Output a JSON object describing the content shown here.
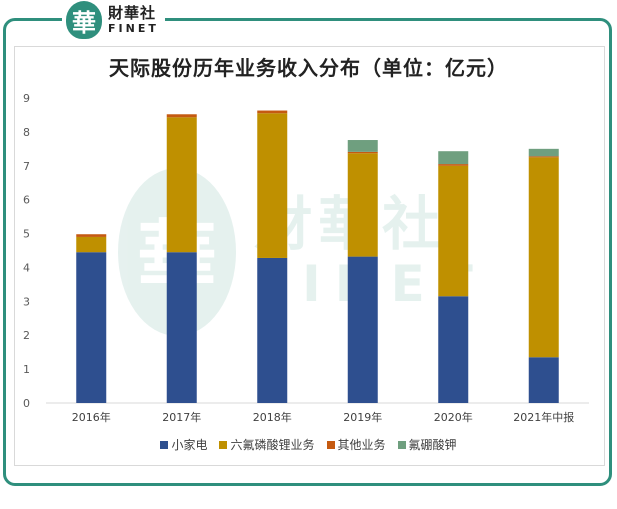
{
  "logo": {
    "mark": "華",
    "name_cn": "財華社",
    "name_en": "FINET"
  },
  "watermark": {
    "mark": "華",
    "name_cn": "財華社",
    "name_en": "FINET"
  },
  "colors": {
    "brand": "#2f8f7d",
    "series": [
      "#2e4f8f",
      "#bf9000",
      "#c55a11",
      "#6f9f7f"
    ]
  },
  "chart_data": {
    "type": "bar",
    "stacked": true,
    "title": "天际股份历年业务收入分布（单位：亿元）",
    "categories": [
      "2016年",
      "2017年",
      "2018年",
      "2019年",
      "2020年",
      "2021年中报"
    ],
    "series": [
      {
        "name": "小家电",
        "values": [
          4.45,
          4.45,
          4.28,
          4.32,
          3.15,
          1.35
        ]
      },
      {
        "name": "六氟磷酸锂业务",
        "values": [
          0.45,
          3.98,
          4.27,
          3.05,
          3.85,
          5.9
        ]
      },
      {
        "name": "其他业务",
        "values": [
          0.08,
          0.09,
          0.08,
          0.04,
          0.05,
          0.03
        ]
      },
      {
        "name": "氟硼酸钾",
        "values": [
          0,
          0,
          0,
          0.35,
          0.38,
          0.22
        ]
      }
    ],
    "ylim": [
      0,
      9
    ],
    "yticks": [
      "0",
      "1",
      "2",
      "3",
      "4",
      "5",
      "6",
      "7",
      "8",
      "9"
    ],
    "legend_position": "bottom",
    "grid": false
  }
}
